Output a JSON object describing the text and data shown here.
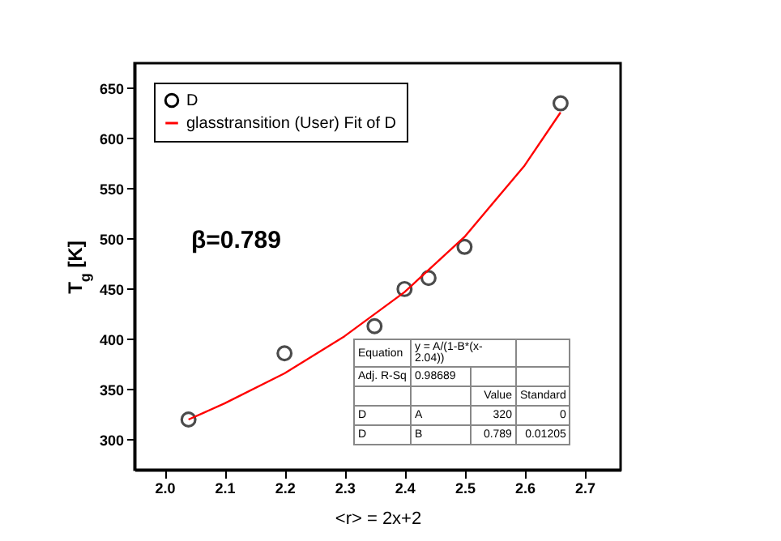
{
  "chart_data": {
    "type": "scatter",
    "xlabel": "<r> = 2x+2",
    "ylabel": "T$_{g}$ [K]",
    "xlim": [
      1.95,
      2.76
    ],
    "xticks": [
      {
        "value": 2,
        "label": "2.0"
      },
      2.1,
      2.2,
      2.3,
      2.4,
      2.5,
      2.6,
      2.7
    ],
    "ylim": [
      270,
      675
    ],
    "yticks": [
      300,
      350,
      400,
      450,
      500,
      550,
      600,
      650
    ],
    "grid": false,
    "legend": "top left",
    "marker": "circle",
    "annotations": [
      "β=0.789",
      "Equation",
      "y = A/(1-B*(x-2.04))",
      "Adj. R-Sq",
      "0.98689",
      "Value",
      "Standard",
      "D",
      "A",
      "320",
      "0",
      "D",
      "B",
      "0.789",
      "0.01205"
    ],
    "series": [
      {
        "name": "D",
        "type": "scatter",
        "color": "#000000",
        "x": [
          2.04,
          2.2,
          2.35,
          2.4,
          2.44,
          2.5,
          2.66
        ],
        "values": [
          320,
          386,
          413,
          450,
          461,
          492,
          635
        ]
      },
      {
        "name": "glasstransition (User) Fit of D",
        "type": "line",
        "color": "#ff0000",
        "marker": "none",
        "line_style": "solid",
        "x": [
          2.04,
          2.1,
          2.2,
          2.3,
          2.4,
          2.5,
          2.6,
          2.66
        ],
        "values": [
          320,
          336,
          366,
          403,
          447,
          502,
          573,
          626
        ]
      }
    ]
  }
}
